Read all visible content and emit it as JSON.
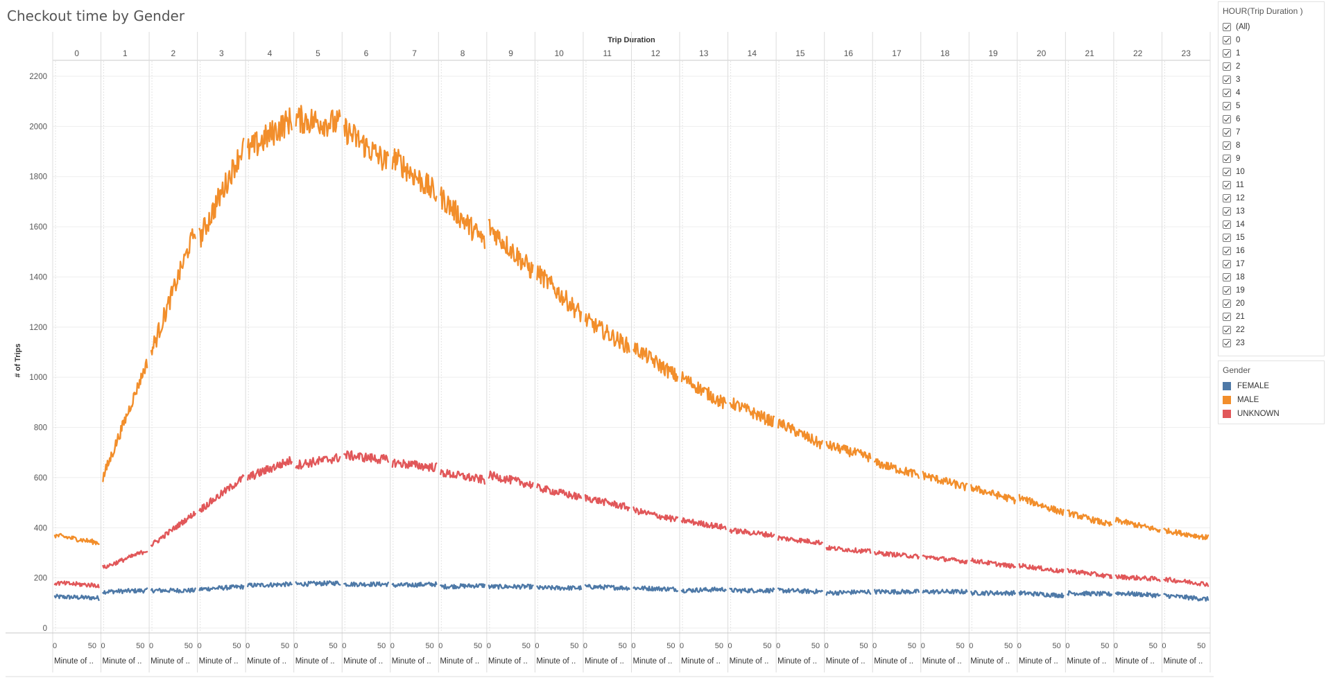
{
  "title": "Checkout time by Gender",
  "filter": {
    "title": "HOUR(Trip Duration )",
    "items": [
      "(All)",
      "0",
      "1",
      "2",
      "3",
      "4",
      "5",
      "6",
      "7",
      "8",
      "9",
      "10",
      "11",
      "12",
      "13",
      "14",
      "15",
      "16",
      "17",
      "18",
      "19",
      "20",
      "21",
      "22",
      "23"
    ]
  },
  "legend": {
    "title": "Gender",
    "items": [
      {
        "label": "FEMALE",
        "color": "#4e79a7"
      },
      {
        "label": "MALE",
        "color": "#f28e2b"
      },
      {
        "label": "UNKNOWN",
        "color": "#e15759"
      }
    ]
  },
  "chart_data": {
    "type": "line",
    "title": "Checkout time by Gender",
    "column_header": "Trip Duration",
    "panels": [
      "0",
      "1",
      "2",
      "3",
      "4",
      "5",
      "6",
      "7",
      "8",
      "9",
      "10",
      "11",
      "12",
      "13",
      "14",
      "15",
      "16",
      "17",
      "18",
      "19",
      "20",
      "21",
      "22",
      "23"
    ],
    "panel_xlabel": "Minute of ..",
    "panel_x_ticks": [
      0,
      50
    ],
    "panel_x_range": [
      0,
      59
    ],
    "ylabel": "# of Trips",
    "ylim": [
      0,
      2200
    ],
    "y_ticks": [
      0,
      200,
      400,
      600,
      800,
      1000,
      1200,
      1400,
      1600,
      1800,
      2000,
      2200
    ],
    "grid": true,
    "legend_position": "right",
    "series": [
      {
        "name": "FEMALE",
        "color": "#4e79a7",
        "start": [
          125,
          145,
          150,
          155,
          170,
          175,
          175,
          170,
          165,
          165,
          160,
          165,
          160,
          150,
          150,
          150,
          140,
          145,
          145,
          140,
          140,
          140,
          140,
          130
        ],
        "end": [
          120,
          150,
          150,
          165,
          175,
          180,
          175,
          175,
          170,
          165,
          160,
          160,
          155,
          155,
          150,
          145,
          145,
          145,
          145,
          140,
          130,
          135,
          130,
          115
        ]
      },
      {
        "name": "MALE",
        "color": "#f28e2b",
        "start": [
          370,
          600,
          1100,
          1550,
          1900,
          2030,
          1990,
          1880,
          1720,
          1600,
          1420,
          1230,
          1120,
          1000,
          900,
          820,
          730,
          660,
          610,
          560,
          520,
          460,
          430,
          390
        ],
        "end": [
          340,
          1060,
          1590,
          1920,
          2030,
          2010,
          1850,
          1730,
          1540,
          1420,
          1250,
          1120,
          1000,
          890,
          820,
          730,
          680,
          610,
          560,
          510,
          460,
          410,
          390,
          360
        ]
      },
      {
        "name": "UNKNOWN",
        "color": "#e15759",
        "start": [
          180,
          240,
          330,
          470,
          600,
          650,
          690,
          660,
          620,
          610,
          560,
          520,
          470,
          430,
          390,
          360,
          320,
          300,
          285,
          270,
          250,
          230,
          205,
          195
        ],
        "end": [
          170,
          310,
          460,
          600,
          670,
          680,
          670,
          640,
          590,
          570,
          520,
          480,
          430,
          400,
          370,
          340,
          305,
          285,
          265,
          245,
          225,
          205,
          195,
          175
        ]
      }
    ]
  }
}
